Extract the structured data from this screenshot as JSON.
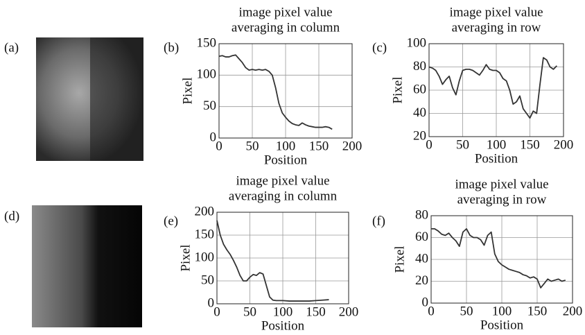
{
  "figure": {
    "panel_labels": [
      "(a)",
      "(b)",
      "(c)",
      "(d)",
      "(e)",
      "(f)"
    ]
  },
  "chart_data": [
    {
      "type": "line",
      "title": [
        "image pixel value",
        "averaging in column"
      ],
      "x_label": "Position",
      "y_label": "Pixel",
      "x": [
        0,
        5,
        10,
        15,
        20,
        25,
        30,
        35,
        40,
        45,
        50,
        55,
        60,
        65,
        70,
        75,
        80,
        85,
        90,
        95,
        100,
        105,
        110,
        115,
        120,
        125,
        130,
        135,
        140,
        145,
        150,
        155,
        160,
        165,
        170
      ],
      "values": [
        130,
        131,
        129,
        129,
        131,
        132,
        126,
        120,
        112,
        108,
        109,
        108,
        109,
        108,
        109,
        106,
        100,
        80,
        55,
        40,
        33,
        27,
        23,
        21,
        20,
        24,
        21,
        19,
        18,
        17,
        17,
        17,
        18,
        17,
        14
      ],
      "color": "#333333",
      "xlim": [
        0,
        200
      ],
      "ylim": [
        0,
        150
      ],
      "xticks": [
        0,
        50,
        100,
        150,
        200
      ],
      "yticks": [
        0,
        50,
        100,
        150
      ],
      "grid": true
    },
    {
      "type": "line",
      "title": [
        "image pixel value",
        "averaging in row"
      ],
      "x_label": "Position",
      "y_label": "Pixel",
      "x": [
        0,
        5,
        10,
        15,
        20,
        25,
        30,
        35,
        40,
        45,
        50,
        55,
        60,
        65,
        70,
        75,
        80,
        85,
        90,
        95,
        100,
        105,
        110,
        115,
        120,
        125,
        130,
        135,
        140,
        145,
        150,
        155,
        160,
        165,
        170,
        175,
        180,
        185,
        190
      ],
      "values": [
        80,
        79,
        77,
        72,
        65,
        69,
        72,
        62,
        56,
        68,
        77,
        78,
        78,
        77,
        75,
        73,
        77,
        82,
        78,
        77,
        77,
        75,
        70,
        68,
        60,
        48,
        50,
        55,
        44,
        40,
        36,
        42,
        40,
        65,
        88,
        86,
        80,
        78,
        81
      ],
      "color": "#333333",
      "xlim": [
        0,
        200
      ],
      "ylim": [
        20,
        100
      ],
      "xticks": [
        0,
        50,
        100,
        150,
        200
      ],
      "yticks": [
        20,
        40,
        60,
        80,
        100
      ],
      "grid": true
    },
    {
      "type": "line",
      "title": [
        "image pixel value",
        "averaging in column"
      ],
      "x_label": "Position",
      "y_label": "Pixel",
      "x": [
        0,
        5,
        10,
        15,
        20,
        25,
        30,
        35,
        40,
        45,
        50,
        55,
        60,
        65,
        70,
        75,
        80,
        85,
        90,
        95,
        100,
        110,
        120,
        130,
        140,
        150,
        160,
        170
      ],
      "values": [
        182,
        150,
        130,
        118,
        108,
        95,
        80,
        62,
        50,
        50,
        58,
        64,
        62,
        68,
        65,
        40,
        15,
        8,
        7,
        7,
        7,
        6,
        6,
        6,
        6,
        7,
        8,
        9
      ],
      "color": "#333333",
      "xlim": [
        0,
        200
      ],
      "ylim": [
        0,
        200
      ],
      "xticks": [
        0,
        50,
        100,
        150,
        200
      ],
      "yticks": [
        0,
        50,
        100,
        150,
        200
      ],
      "grid": true
    },
    {
      "type": "line",
      "title": [
        "image pixel value",
        "averaging in row"
      ],
      "x_label": "Position",
      "y_label": "Pixel",
      "x": [
        0,
        5,
        10,
        15,
        20,
        25,
        30,
        35,
        40,
        45,
        50,
        55,
        60,
        65,
        70,
        75,
        80,
        85,
        90,
        95,
        100,
        105,
        110,
        115,
        120,
        125,
        130,
        135,
        140,
        145,
        150,
        155,
        160,
        165,
        170,
        175,
        180,
        185,
        190
      ],
      "values": [
        68,
        68,
        66,
        63,
        62,
        64,
        60,
        57,
        52,
        65,
        68,
        62,
        60,
        60,
        58,
        53,
        62,
        65,
        45,
        38,
        35,
        33,
        31,
        30,
        29,
        28,
        26,
        25,
        23,
        24,
        22,
        14,
        18,
        22,
        20,
        21,
        22,
        20,
        21
      ],
      "color": "#333333",
      "xlim": [
        0,
        200
      ],
      "ylim": [
        0,
        80
      ],
      "xticks": [
        0,
        50,
        100,
        150,
        200
      ],
      "yticks": [
        0,
        20,
        40,
        60,
        80
      ],
      "grid": true
    }
  ]
}
